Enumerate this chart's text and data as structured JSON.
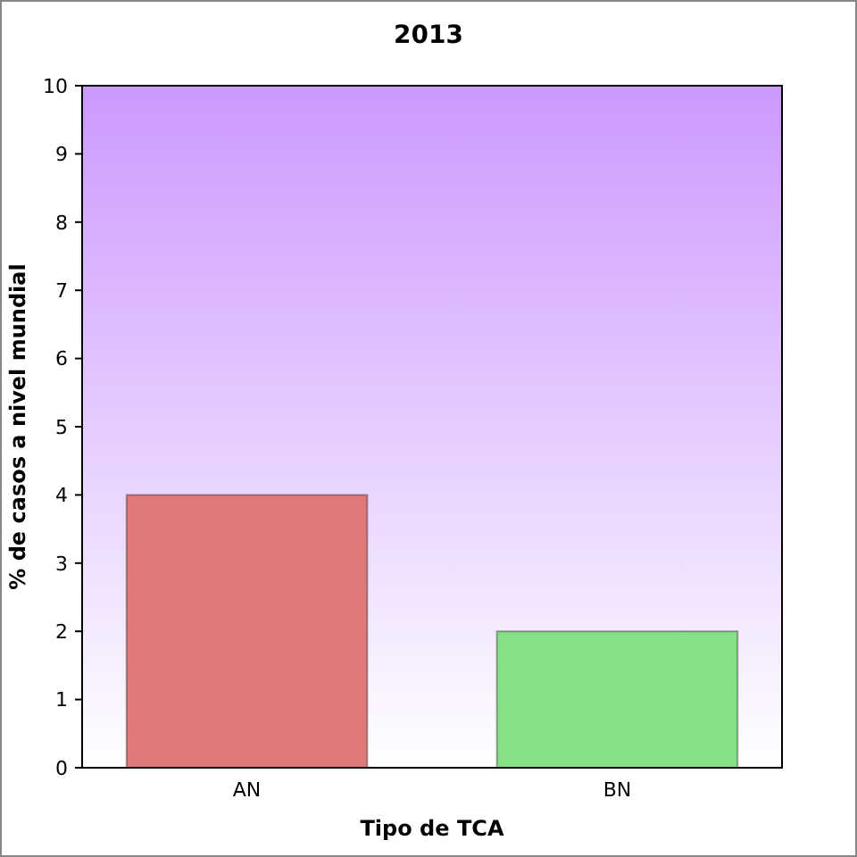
{
  "chart_data": {
    "type": "bar",
    "title": "2013",
    "xlabel": "Tipo de TCA",
    "ylabel": "% de casos a nivel mundial",
    "categories": [
      "AN",
      "BN"
    ],
    "values": [
      4,
      2
    ],
    "colors": [
      "#e07a7a",
      "#86e086"
    ],
    "ylim": [
      0,
      10
    ],
    "yticks": [
      0,
      1,
      2,
      3,
      4,
      5,
      6,
      7,
      8,
      9,
      10
    ]
  }
}
